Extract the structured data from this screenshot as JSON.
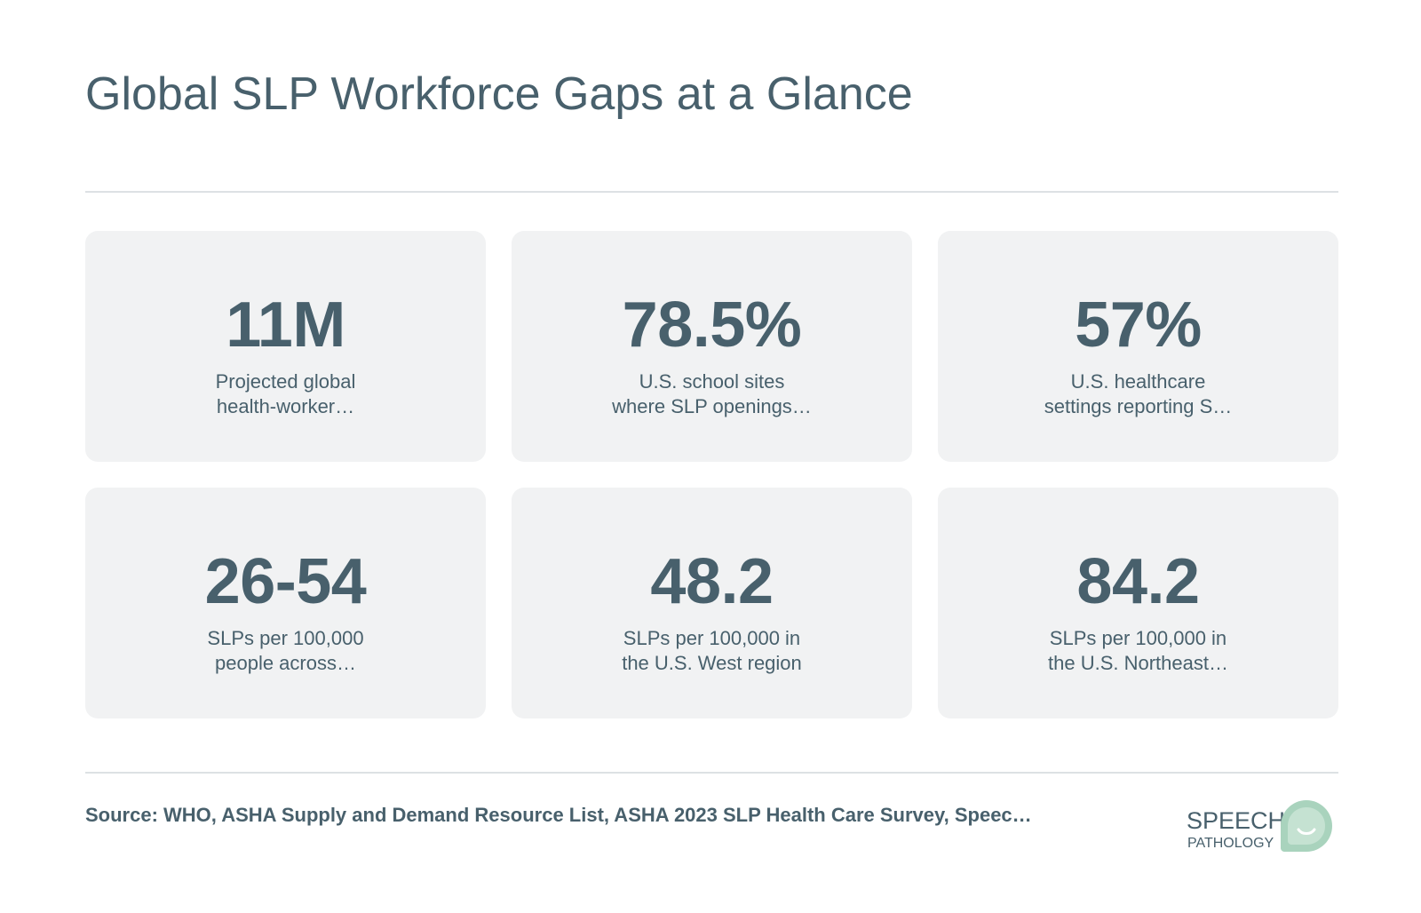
{
  "title": "Global SLP Workforce Gaps at a Glance",
  "stats": [
    {
      "value": "11M",
      "label_lines": [
        "Projected global",
        "health-worker…"
      ]
    },
    {
      "value": "78.5%",
      "label_lines": [
        "U.S. school sites",
        "where SLP openings…"
      ]
    },
    {
      "value": "57%",
      "label_lines": [
        "U.S. healthcare",
        "settings reporting S…"
      ]
    },
    {
      "value": "26-54",
      "label_lines": [
        "SLPs per 100,000",
        "people across…"
      ]
    },
    {
      "value": "48.2",
      "label_lines": [
        "SLPs per 100,000 in",
        "the U.S. West region"
      ]
    },
    {
      "value": "84.2",
      "label_lines": [
        "SLPs per 100,000 in",
        "the U.S. Northeast…"
      ]
    }
  ],
  "source": "Source: WHO, ASHA Supply and Demand Resource List, ASHA 2023 SLP Health Care Survey, Speec…",
  "logo": {
    "line1": "SPEECH",
    "line2": "PATHOLOGY",
    "icon": "speech-bubble-smile-icon"
  },
  "colors": {
    "text": "#48606c",
    "card_bg": "#f1f2f3",
    "rule": "#dde1e4",
    "logo_accent": "#a9d3bd"
  }
}
